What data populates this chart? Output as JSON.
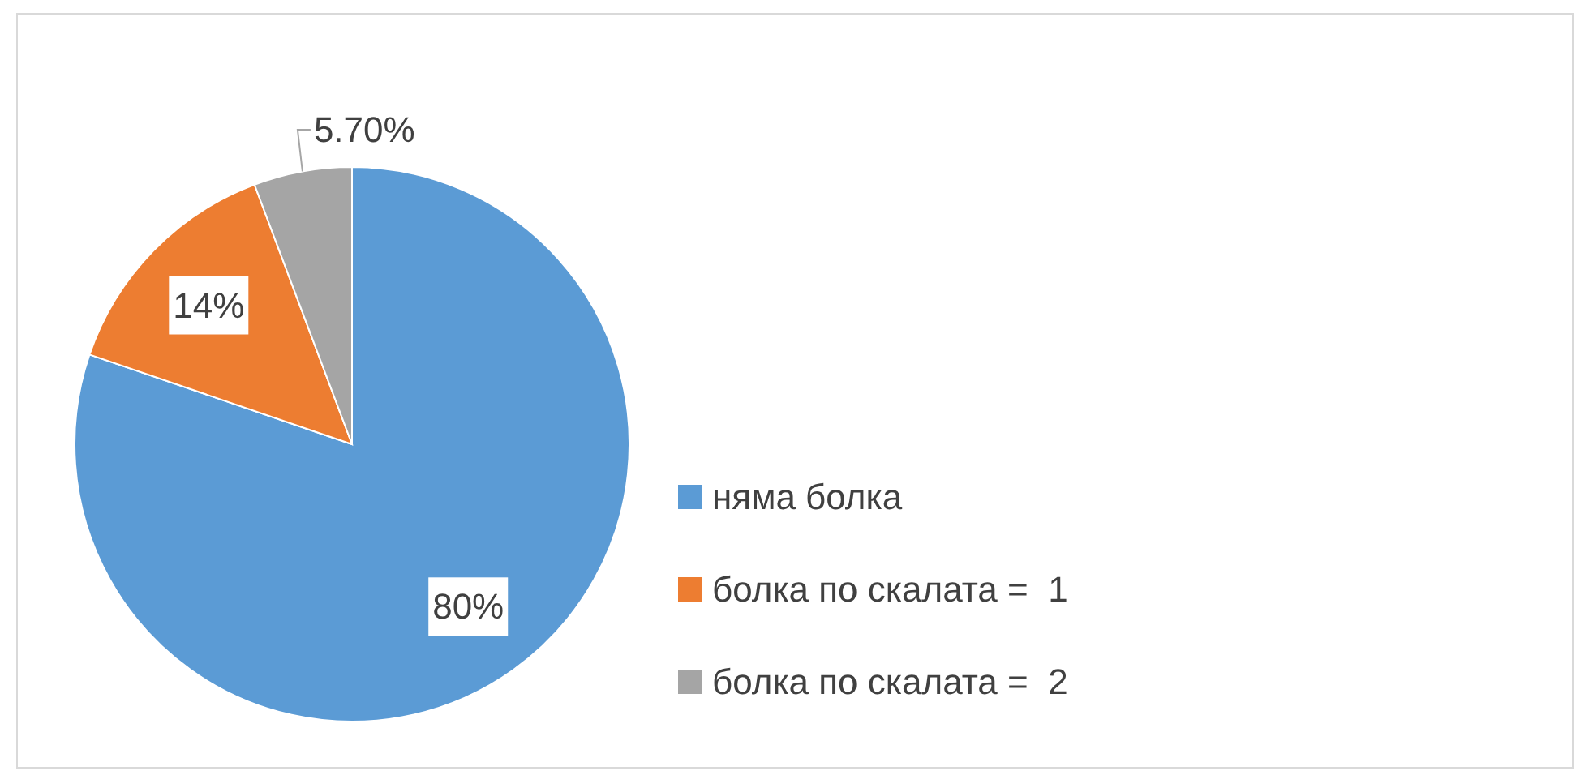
{
  "chart_data": {
    "type": "pie",
    "categories": [
      "няма болка",
      "болка по скалата =  1",
      "болка по скалата =  2"
    ],
    "values": [
      80,
      14,
      5.7
    ],
    "colors": [
      "#5b9bd5",
      "#ed7d31",
      "#a5a5a5"
    ],
    "value_labels": [
      "80%",
      "14%",
      "5.70%"
    ],
    "legend": "right"
  }
}
